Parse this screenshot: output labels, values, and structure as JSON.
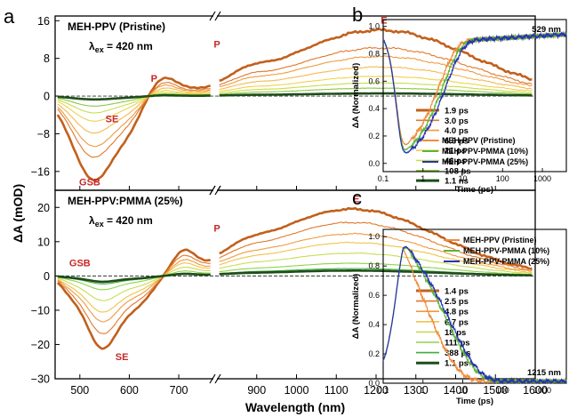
{
  "panel_labels": [
    "a",
    "b",
    "c"
  ],
  "colors": {
    "pristine": [
      "#c2601c",
      "#e0782a",
      "#ef9a3e",
      "#f5b84e",
      "#f2d14a",
      "#c9dc4a",
      "#8bc840",
      "#1e4d1a"
    ],
    "pmma25": [
      "#c2601c",
      "#e0782a",
      "#ef9a3e",
      "#f2c24a",
      "#c8dc52",
      "#8ed24a",
      "#3fae3a",
      "#1e4d1a"
    ],
    "kinetics": {
      "pristine": "#f08a3a",
      "pmma10": "#5cb535",
      "pmma25": "#2632b0"
    }
  },
  "chart_data": [
    {
      "type": "line",
      "panel": "a-top",
      "title": "MEH-PPV (Pristine)",
      "excitation": {
        "prefix": "λ",
        "sub": "ex",
        "value": " = 420 nm"
      },
      "xlabel": "Wavelength (nm)",
      "ylabel": "ΔA (mOD)",
      "xlim": [
        450,
        1600
      ],
      "axis_break": [
        770,
        800
      ],
      "ylim": [
        -20,
        17
      ],
      "yticks": [
        -16,
        -8,
        0,
        8,
        16
      ],
      "annotations": [
        {
          "text": "E",
          "x": 1220,
          "y": 15.4
        },
        {
          "text": "P",
          "x": 650,
          "y": 3.0
        },
        {
          "text": "P",
          "x": 800,
          "y": 10.3
        },
        {
          "text": "SE",
          "x": 565,
          "y": -5.6
        },
        {
          "text": "GSB",
          "x": 520,
          "y": -19.0
        }
      ],
      "series": [
        {
          "name": "1.9 ps",
          "amp": 1.0
        },
        {
          "name": "3.0 ps",
          "amp": 0.73
        },
        {
          "name": "4.0 ps",
          "amp": 0.6
        },
        {
          "name": "6.6 ps",
          "amp": 0.44
        },
        {
          "name": "21 ps",
          "amp": 0.3
        },
        {
          "name": "46 ps",
          "amp": 0.2
        },
        {
          "name": "108 ps",
          "amp": 0.12
        },
        {
          "name": "1.1  ns",
          "amp": 0.04
        }
      ],
      "legend_position": "right"
    },
    {
      "type": "line",
      "panel": "a-bottom",
      "title": "MEH-PPV:PMMA (25%)",
      "excitation": {
        "prefix": "λ",
        "sub": "ex",
        "value": " = 420 nm"
      },
      "xlabel": "Wavelength (nm)",
      "ylabel": "ΔA (mOD)",
      "xlim": [
        450,
        1600
      ],
      "xticks": [
        500,
        600,
        700,
        900,
        1000,
        1100,
        1200,
        1300,
        1400,
        1500,
        1600
      ],
      "axis_break": [
        770,
        800
      ],
      "ylim": [
        -30,
        25
      ],
      "yticks": [
        -30,
        -20,
        -10,
        0,
        10,
        20
      ],
      "annotations": [
        {
          "text": "E",
          "x": 1150,
          "y": 21.5
        },
        {
          "text": "P",
          "x": 800,
          "y": 13.0
        },
        {
          "text": "GSB",
          "x": 500,
          "y": 2.8
        },
        {
          "text": "SE",
          "x": 585,
          "y": -24.5
        }
      ],
      "series": [
        {
          "name": "1.4 ps",
          "amp": 1.0
        },
        {
          "name": "2.5 ps",
          "amp": 0.8
        },
        {
          "name": "4.8 ps",
          "amp": 0.63
        },
        {
          "name": "6.7 ps",
          "amp": 0.5
        },
        {
          "name": "18 ps",
          "amp": 0.34
        },
        {
          "name": "111 ps",
          "amp": 0.19
        },
        {
          "name": "388 ps",
          "amp": 0.11
        },
        {
          "name": "1.1 ps",
          "amp": 0.08
        }
      ],
      "legend_position": "right"
    },
    {
      "type": "line",
      "panel": "b",
      "annotation": "529 nm",
      "xlabel": "Time (ps)",
      "ylabel": "ΔA (Normalized)",
      "xscale": "log",
      "xlim": [
        0.1,
        4000
      ],
      "ylim": [
        -0.06,
        1.05
      ],
      "yticks": [
        0.0,
        0.2,
        0.4,
        0.6,
        0.8,
        1.0
      ],
      "xticks": [
        0.1,
        1,
        10,
        100,
        1000
      ],
      "series": [
        {
          "name": "MEH-PPV (Pristine)"
        },
        {
          "name": "MEH-PPV-PMMA (10%)"
        },
        {
          "name": "MEH-PPV-PMMA (25%)"
        }
      ],
      "legend_position": "bottom-right"
    },
    {
      "type": "line",
      "panel": "c",
      "annotation": "1215 nm",
      "xlabel": "Time (ps)",
      "ylabel": "ΔA (Normalized)",
      "xscale": "log",
      "xlim": [
        0.1,
        4000
      ],
      "ylim": [
        0,
        1.05
      ],
      "yticks": [
        0.0,
        0.2,
        0.4,
        0.6,
        0.8,
        1.0
      ],
      "xticks": [
        0.1,
        1,
        10,
        100,
        1000
      ],
      "series": [
        {
          "name": "MEH-PPV (Pristine)"
        },
        {
          "name": "MEH-PPV-PMMA (10%)"
        },
        {
          "name": "MEH-PPV-PMMA (25%)"
        }
      ],
      "legend_position": "top-right"
    }
  ]
}
